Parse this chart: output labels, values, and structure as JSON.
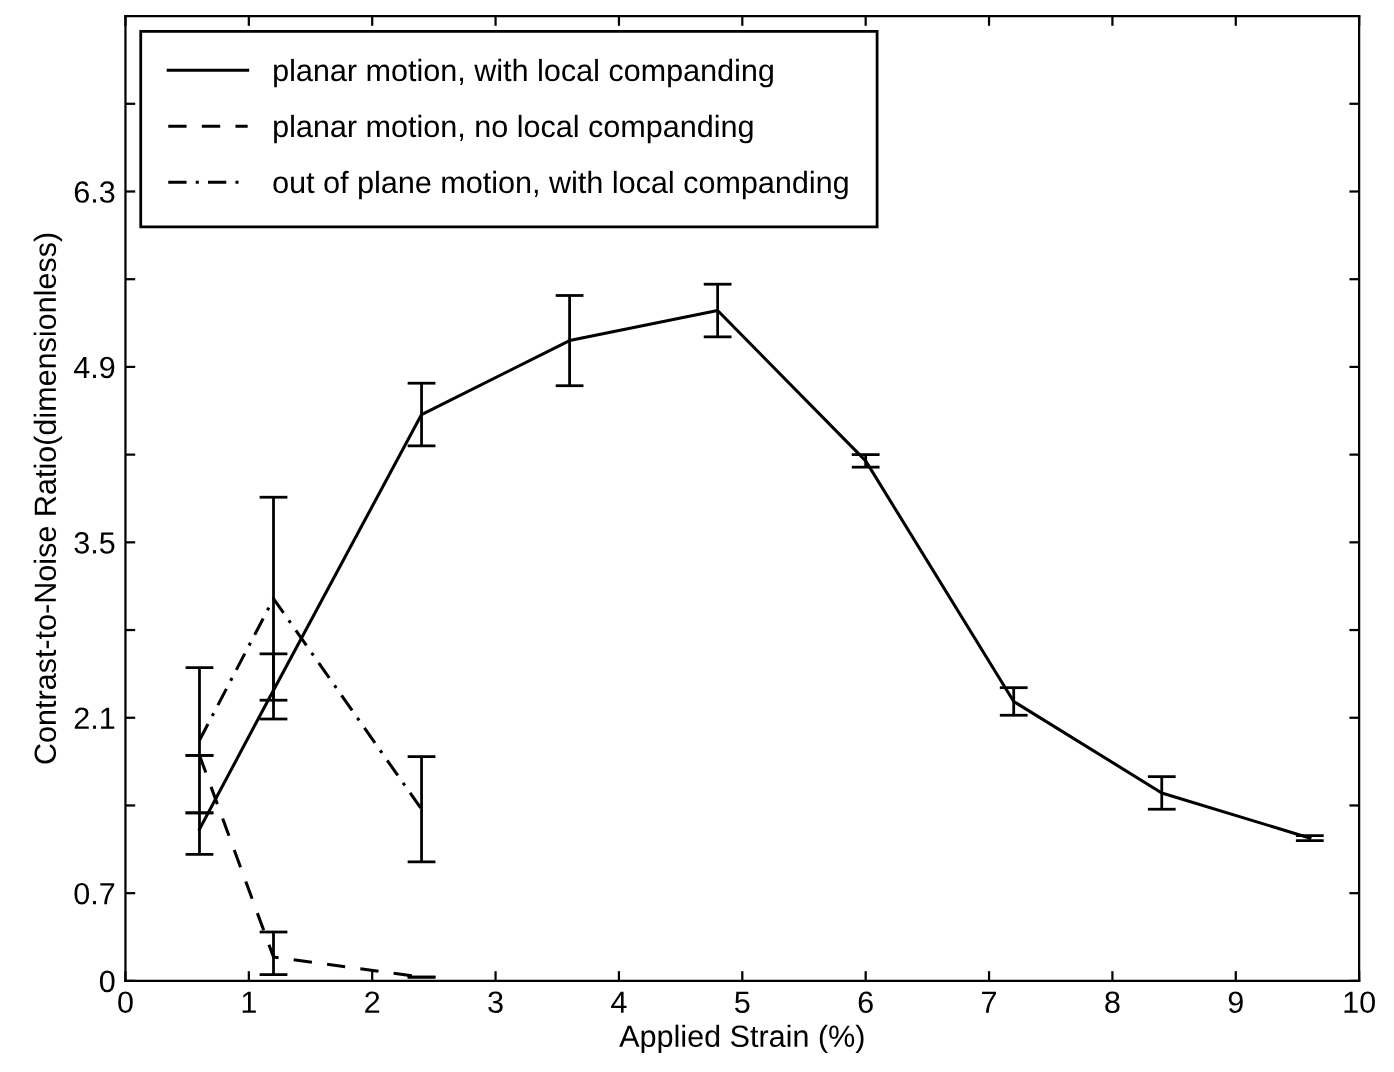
{
  "chart_data": {
    "type": "line",
    "xlabel": "Applied Strain (%)",
    "ylabel": "Contrast-to-Noise Ratio(dimensionless)",
    "xlim": [
      0,
      10
    ],
    "xticks": [
      0,
      1,
      2,
      3,
      4,
      5,
      6,
      7,
      8,
      9,
      10
    ],
    "ylim": [
      0,
      7.7
    ],
    "yticks": [
      0,
      0.7,
      {
        "value": 1.4,
        "label": null
      },
      2.1,
      {
        "value": 2.8,
        "label": null
      },
      3.5,
      {
        "value": 4.2,
        "label": null
      },
      4.9,
      {
        "value": 5.6,
        "label": null
      },
      6.3,
      {
        "value": 7.0,
        "label": null
      }
    ],
    "legend": "top left",
    "grid": false,
    "marker": "none",
    "series": [
      {
        "name": "planar motion, with local companding",
        "color": "#000000",
        "line_style": "solid",
        "x": [
          0.6,
          1.2,
          2.4,
          3.6,
          4.8,
          6.0,
          7.2,
          8.4,
          9.6
        ],
        "values": [
          1.21,
          2.32,
          4.52,
          5.11,
          5.35,
          4.15,
          2.23,
          1.5,
          1.14
        ],
        "errors": [
          [
            1.01,
            1.34
          ],
          [
            2.09,
            2.61
          ],
          0.25,
          0.36,
          0.21,
          0.05,
          0.11,
          0.13,
          0.02
        ]
      },
      {
        "name": "planar motion, no local companding",
        "color": "#000000",
        "line_style": "dashed",
        "x": [
          0.6,
          1.2,
          2.4
        ],
        "values": [
          1.8,
          0.19,
          0.03
        ],
        "errors": [
          null,
          [
            0.05,
            0.39
          ],
          null
        ]
      },
      {
        "name": "out of plane motion, with local companding",
        "color": "#000000",
        "line_style": "dashdot",
        "x": [
          0.6,
          1.2,
          2.4
        ],
        "values": [
          1.92,
          3.05,
          1.37
        ],
        "errors": [
          0.58,
          0.81,
          0.42
        ]
      }
    ]
  }
}
